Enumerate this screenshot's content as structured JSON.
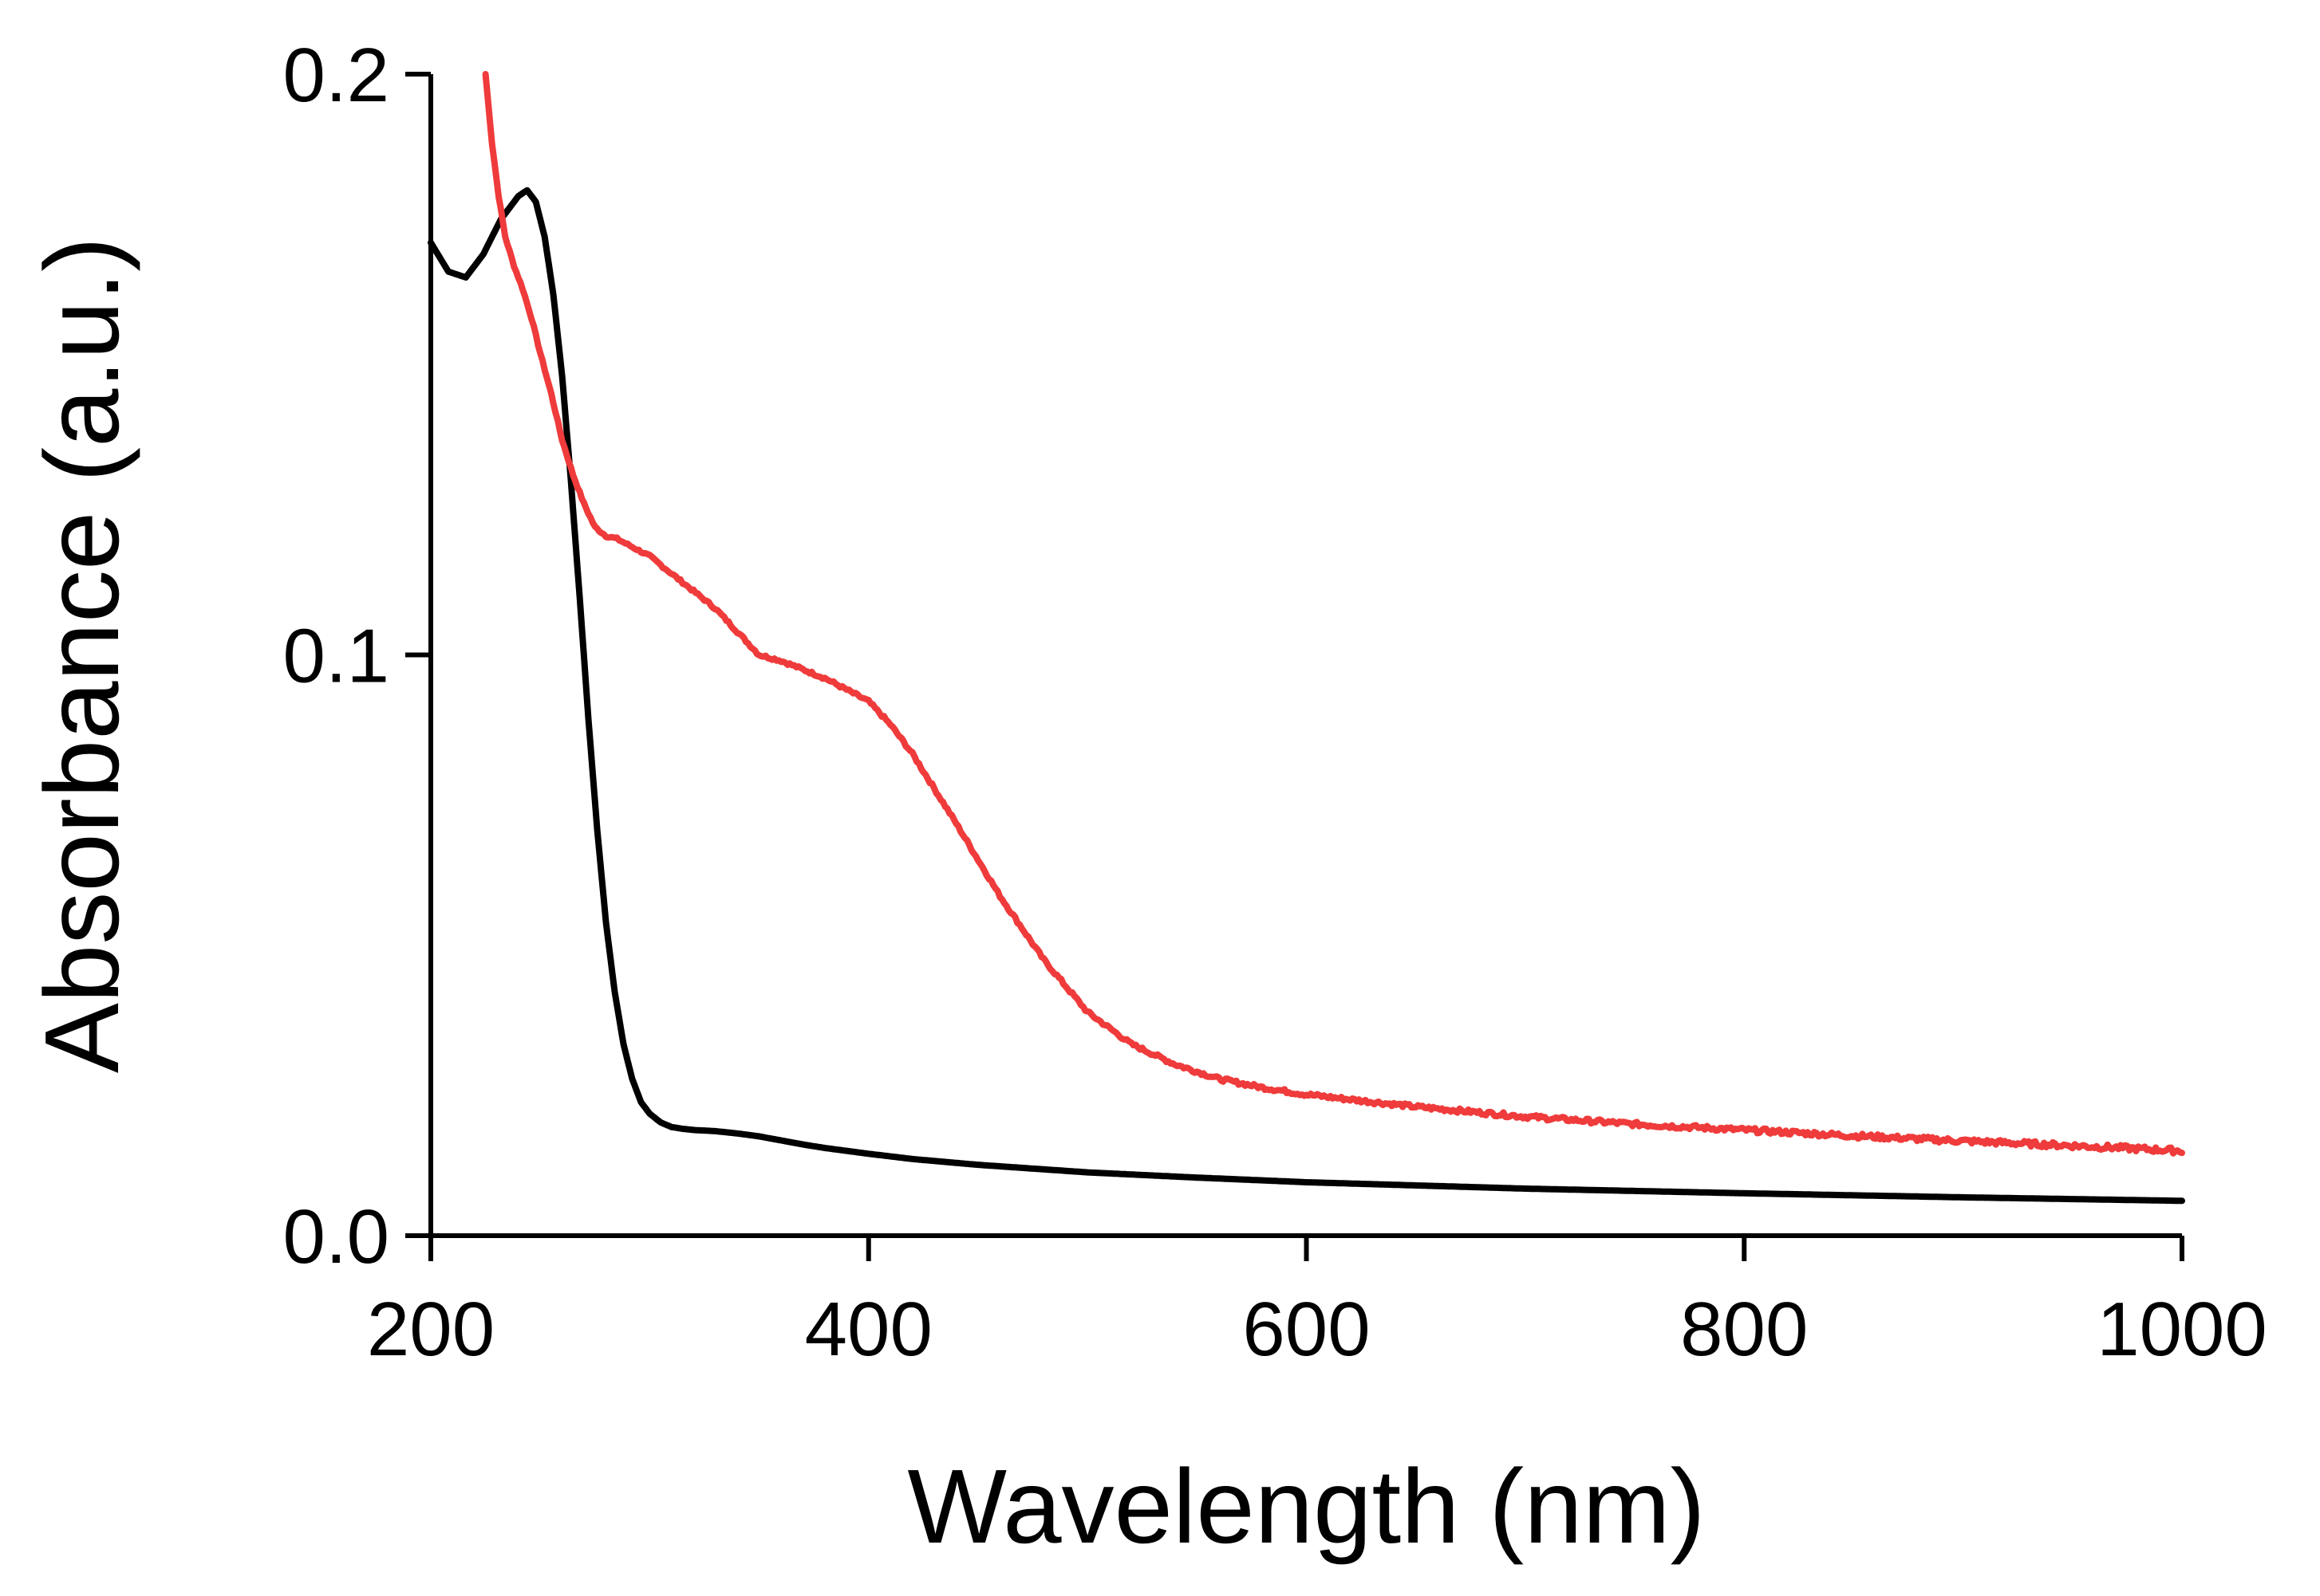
{
  "chart_data": {
    "type": "line",
    "title": "",
    "xlabel": "Wavelength (nm)",
    "ylabel": "Absorbance (a.u.)",
    "xlim": [
      200,
      1000
    ],
    "ylim": [
      0.0,
      0.2
    ],
    "xticks": [
      200,
      400,
      600,
      800,
      1000
    ],
    "xtick_labels": [
      "200",
      "400",
      "600",
      "800",
      "1000"
    ],
    "yticks": [
      0.0,
      0.1,
      0.2
    ],
    "ytick_labels": [
      "0.0",
      "0.1",
      "0.2"
    ],
    "grid": false,
    "legend": "none",
    "series": [
      {
        "name": "black trace",
        "color": "#000000",
        "noise": 0,
        "x": [
          200,
          208,
          216,
          224,
          232,
          240,
          244,
          248,
          252,
          256,
          260,
          264,
          268,
          272,
          276,
          280,
          284,
          288,
          292,
          296,
          300,
          305,
          310,
          315,
          320,
          330,
          340,
          350,
          360,
          370,
          380,
          400,
          420,
          450,
          500,
          550,
          600,
          700,
          800,
          900,
          1000
        ],
        "y": [
          0.171,
          0.166,
          0.165,
          0.169,
          0.175,
          0.179,
          0.18,
          0.178,
          0.172,
          0.162,
          0.148,
          0.13,
          0.11,
          0.089,
          0.07,
          0.054,
          0.042,
          0.033,
          0.027,
          0.023,
          0.021,
          0.0195,
          0.0187,
          0.0184,
          0.0182,
          0.018,
          0.0176,
          0.0171,
          0.0164,
          0.0157,
          0.0151,
          0.0141,
          0.0132,
          0.0122,
          0.0109,
          0.01,
          0.0092,
          0.0081,
          0.0073,
          0.0066,
          0.006
        ]
      },
      {
        "name": "red trace",
        "color": "#ef3b3b",
        "noise": 0.0005,
        "x": [
          225,
          228,
          231,
          234,
          238,
          242,
          246,
          250,
          255,
          260,
          265,
          270,
          275,
          280,
          285,
          290,
          300,
          310,
          320,
          330,
          340,
          350,
          360,
          370,
          380,
          390,
          400,
          410,
          420,
          430,
          440,
          460,
          480,
          500,
          520,
          540,
          560,
          580,
          600,
          650,
          700,
          750,
          800,
          850,
          900,
          950,
          1000
        ],
        "y": [
          0.2,
          0.188,
          0.179,
          0.172,
          0.167,
          0.163,
          0.158,
          0.152,
          0.145,
          0.137,
          0.131,
          0.126,
          0.122,
          0.1205,
          0.12,
          0.119,
          0.117,
          0.114,
          0.111,
          0.108,
          0.104,
          0.1,
          0.099,
          0.0975,
          0.096,
          0.094,
          0.092,
          0.088,
          0.083,
          0.077,
          0.071,
          0.0585,
          0.0475,
          0.0385,
          0.033,
          0.0295,
          0.027,
          0.0255,
          0.0243,
          0.0222,
          0.0205,
          0.0192,
          0.0182,
          0.0172,
          0.0163,
          0.0155,
          0.0146
        ]
      }
    ]
  }
}
